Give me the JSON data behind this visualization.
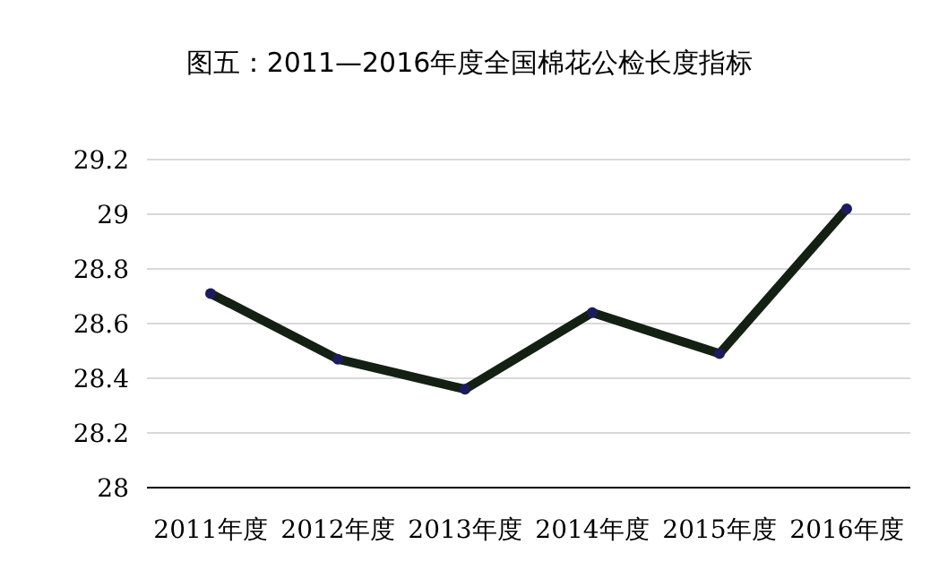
{
  "chart_data": {
    "type": "line",
    "title": "图五：2011—2016年度全国棉花公检长度指标",
    "categories": [
      "2011年度",
      "2012年度",
      "2013年度",
      "2014年度",
      "2015年度",
      "2016年度"
    ],
    "series": [
      {
        "color": "#142014",
        "values": [
          28.71,
          28.47,
          28.36,
          28.64,
          28.49,
          29.02
        ]
      }
    ],
    "ylim": [
      28,
      29.2
    ],
    "yticks": [
      28,
      28.2,
      28.4,
      28.6,
      28.8,
      29,
      29.2
    ],
    "grid": "y",
    "marker": "circle",
    "line_style": "solid"
  }
}
